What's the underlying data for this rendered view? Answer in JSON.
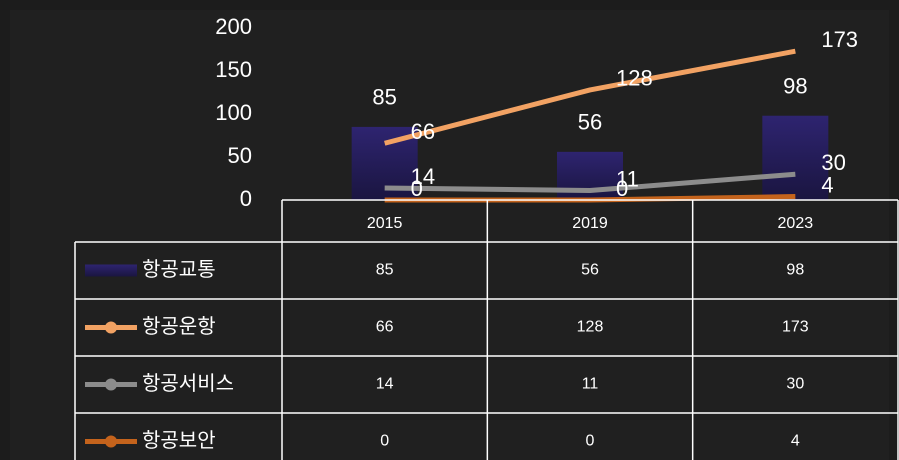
{
  "chart_data": {
    "type": "bar",
    "categories": [
      "2015",
      "2019",
      "2023"
    ],
    "series": [
      {
        "name": "항공교통",
        "type": "bar",
        "color": "#2b2166",
        "values": [
          85,
          56,
          98
        ]
      },
      {
        "name": "항공운항",
        "type": "line",
        "color": "#f2a263",
        "values": [
          66,
          128,
          173
        ]
      },
      {
        "name": "항공서비스",
        "type": "line",
        "color": "#8c8c8c",
        "values": [
          14,
          11,
          30
        ]
      },
      {
        "name": "항공보안",
        "type": "line",
        "color": "#c4631c",
        "values": [
          0,
          0,
          4
        ]
      }
    ],
    "ylim": [
      0,
      200
    ],
    "yticks": [
      0,
      50,
      100,
      150,
      200
    ],
    "grid": false
  }
}
